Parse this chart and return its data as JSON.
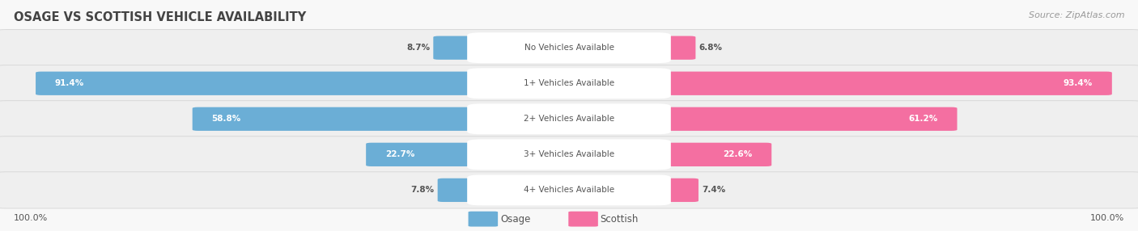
{
  "title": "OSAGE VS SCOTTISH VEHICLE AVAILABILITY",
  "source": "Source: ZipAtlas.com",
  "categories": [
    "No Vehicles Available",
    "1+ Vehicles Available",
    "2+ Vehicles Available",
    "3+ Vehicles Available",
    "4+ Vehicles Available"
  ],
  "osage_values": [
    8.7,
    91.4,
    58.8,
    22.7,
    7.8
  ],
  "scottish_values": [
    6.8,
    93.4,
    61.2,
    22.6,
    7.4
  ],
  "osage_color": "#6baed6",
  "scottish_color": "#f46fa1",
  "osage_light": "#b3d4eb",
  "scottish_light": "#f9b8ce",
  "row_bg_even": "#f0f0f0",
  "row_bg_odd": "#e8e8e8",
  "title_color": "#444444",
  "text_color": "#555555",
  "label_color": "#555555",
  "max_value": 100.0,
  "legend_osage": "Osage",
  "legend_scottish": "Scottish",
  "figsize": [
    14.06,
    2.86
  ],
  "dpi": 100
}
